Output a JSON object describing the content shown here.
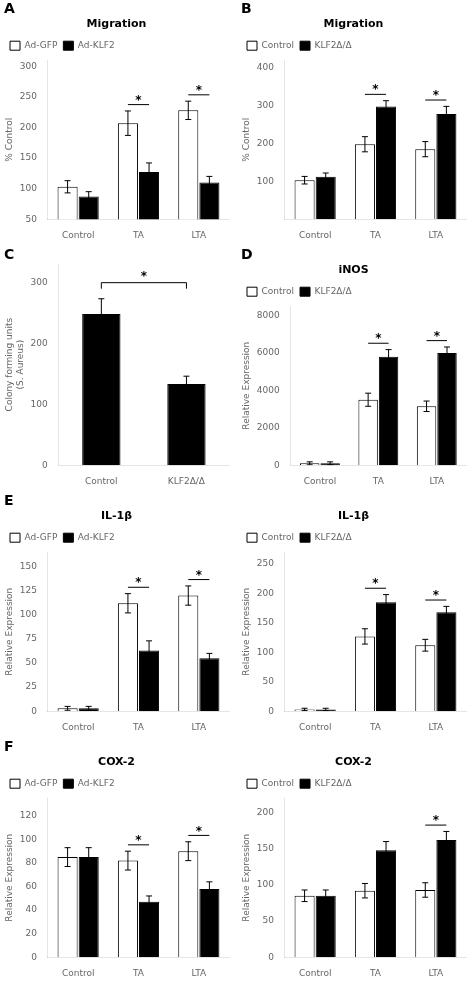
{
  "chart_data": [
    {
      "type": "bar",
      "title": "Migration",
      "ylabel": "% Control",
      "categories": [
        "Control",
        "TA",
        "LTA"
      ],
      "series": [
        {
          "name": "Ad-GFP",
          "color": "white",
          "values": [
            103,
            207,
            228
          ],
          "errors": [
            10,
            20,
            15
          ]
        },
        {
          "name": "Ad-KLF2",
          "color": "black",
          "values": [
            87,
            127,
            110
          ],
          "errors": [
            8,
            15,
            10
          ]
        }
      ],
      "ylim": [
        50,
        310
      ],
      "yticks": [
        50,
        100,
        150,
        200,
        250,
        300
      ],
      "legend": "upper left",
      "grid": false,
      "annotations": [
        {
          "text": "A"
        },
        {
          "text": "*",
          "category": "TA"
        },
        {
          "text": "*",
          "category": "LTA"
        }
      ]
    },
    {
      "type": "bar",
      "title": "Migration",
      "ylabel": "% Control",
      "categories": [
        "Control",
        "TA",
        "LTA"
      ],
      "series": [
        {
          "name": "Control",
          "color": "white",
          "values": [
            103,
            198,
            185
          ],
          "errors": [
            10,
            20,
            20
          ]
        },
        {
          "name": "KLF2Δ/Δ",
          "color": "black",
          "values": [
            112,
            298,
            278
          ],
          "errors": [
            10,
            15,
            20
          ]
        }
      ],
      "ylim": [
        0,
        420
      ],
      "yticks": [
        100,
        200,
        300,
        400
      ],
      "legend": "upper left",
      "grid": false,
      "annotations": [
        {
          "text": "B"
        },
        {
          "text": "*",
          "category": "TA"
        },
        {
          "text": "*",
          "category": "LTA"
        }
      ]
    },
    {
      "type": "bar",
      "ylabel": "Colony forming units\n(S. Aureus)",
      "categories": [
        "Control",
        "KLF2Δ/Δ"
      ],
      "values": [
        248,
        133
      ],
      "errors": [
        25,
        13
      ],
      "color": "black",
      "ylim": [
        0,
        330
      ],
      "yticks": [
        0,
        100,
        200,
        300
      ],
      "grid": false,
      "annotations": [
        {
          "text": "C"
        },
        {
          "text": "*",
          "categories": [
            "Control",
            "KLF2Δ/Δ"
          ]
        }
      ]
    },
    {
      "type": "bar",
      "title": "iNOS",
      "ylabel": "Relative Expression",
      "categories": [
        "Control",
        "TA",
        "LTA"
      ],
      "series": [
        {
          "name": "Control",
          "color": "white",
          "values": [
            100,
            3500,
            3150
          ],
          "errors": [
            80,
            350,
            280
          ]
        },
        {
          "name": "KLF2Δ/Δ",
          "color": "black",
          "values": [
            100,
            5800,
            6000
          ],
          "errors": [
            80,
            380,
            320
          ]
        }
      ],
      "ylim": [
        0,
        8500
      ],
      "yticks": [
        0,
        2000,
        4000,
        6000,
        8000
      ],
      "legend": "upper left",
      "grid": false,
      "annotations": [
        {
          "text": "D"
        },
        {
          "text": "*",
          "category": "TA"
        },
        {
          "text": "*",
          "category": "LTA"
        }
      ]
    },
    {
      "type": "bar",
      "title": "IL-1β",
      "ylabel": "Relative Expression",
      "categories": [
        "Control",
        "TA",
        "LTA"
      ],
      "series": [
        {
          "name": "Ad-GFP",
          "color": "white",
          "values": [
            3,
            112,
            120
          ],
          "errors": [
            2,
            10,
            10
          ]
        },
        {
          "name": "Ad-KLF2",
          "color": "black",
          "values": [
            3,
            63,
            55
          ],
          "errors": [
            2,
            10,
            5
          ]
        }
      ],
      "ylim": [
        0,
        165
      ],
      "yticks": [
        0,
        25,
        50,
        75,
        100,
        125,
        150
      ],
      "legend": "upper left",
      "grid": false,
      "annotations": [
        {
          "text": "E"
        },
        {
          "text": "*",
          "category": "TA"
        },
        {
          "text": "*",
          "category": "LTA"
        }
      ]
    },
    {
      "type": "bar",
      "title": "IL-1β",
      "ylabel": "Relative Expression",
      "categories": [
        "Control",
        "TA",
        "LTA"
      ],
      "series": [
        {
          "name": "Control",
          "color": "white",
          "values": [
            3,
            127,
            112
          ],
          "errors": [
            2,
            13,
            10
          ]
        },
        {
          "name": "KLF2Δ/Δ",
          "color": "black",
          "values": [
            3,
            185,
            168
          ],
          "errors": [
            2,
            13,
            10
          ]
        }
      ],
      "ylim": [
        0,
        270
      ],
      "yticks": [
        0,
        50,
        100,
        150,
        200,
        250
      ],
      "legend": "upper left",
      "grid": false,
      "annotations": [
        {
          "text": "*",
          "category": "TA"
        },
        {
          "text": "*",
          "category": "LTA"
        }
      ]
    },
    {
      "type": "bar",
      "title": "COX-2",
      "ylabel": "Relative Expression",
      "categories": [
        "Control",
        "TA",
        "LTA"
      ],
      "series": [
        {
          "name": "Ad-GFP",
          "color": "white",
          "values": [
            85,
            82,
            90
          ],
          "errors": [
            8,
            8,
            8
          ]
        },
        {
          "name": "Ad-KLF2",
          "color": "black",
          "values": [
            85,
            47,
            58
          ],
          "errors": [
            8,
            5,
            6
          ]
        }
      ],
      "ylim": [
        0,
        135
      ],
      "yticks": [
        0,
        20,
        40,
        60,
        80,
        100,
        120
      ],
      "legend": "upper left",
      "grid": false,
      "annotations": [
        {
          "text": "F"
        },
        {
          "text": "*",
          "category": "TA"
        },
        {
          "text": "*",
          "category": "LTA"
        }
      ]
    },
    {
      "type": "bar",
      "title": "COX-2",
      "ylabel": "Relative Expression",
      "categories": [
        "Control",
        "TA",
        "LTA"
      ],
      "series": [
        {
          "name": "Control",
          "color": "white",
          "values": [
            85,
            92,
            93
          ],
          "errors": [
            8,
            10,
            10
          ]
        },
        {
          "name": "KLF2Δ/Δ",
          "color": "black",
          "values": [
            85,
            148,
            162
          ],
          "errors": [
            8,
            12,
            12
          ]
        }
      ],
      "ylim": [
        0,
        220
      ],
      "yticks": [
        0,
        50,
        100,
        150,
        200
      ],
      "legend": "upper left",
      "grid": false,
      "annotations": [
        {
          "text": "*",
          "category": "LTA"
        }
      ]
    }
  ]
}
